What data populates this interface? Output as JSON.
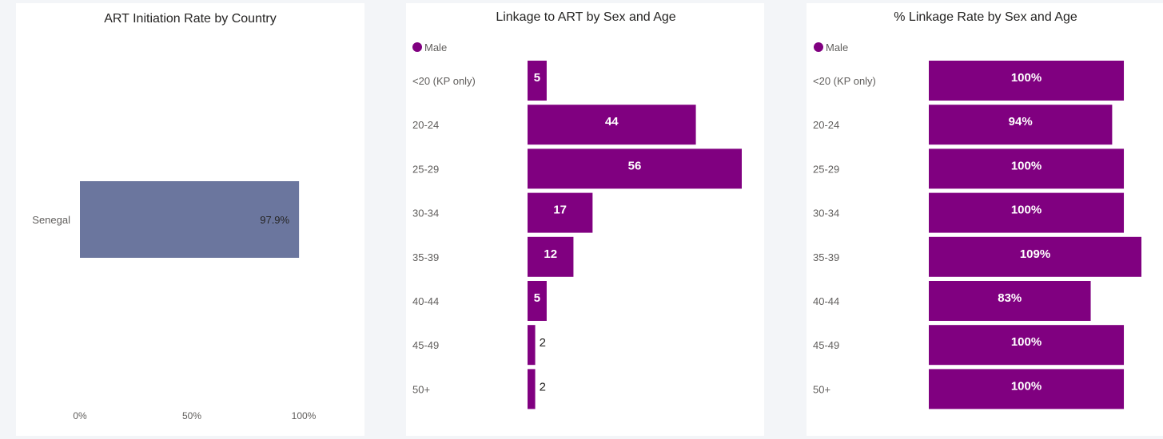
{
  "chart_data": [
    {
      "type": "bar",
      "orientation": "horizontal",
      "title": "ART Initiation Rate by Country",
      "categories": [
        "Senegal"
      ],
      "values": [
        97.9
      ],
      "data_labels": [
        "97.9%"
      ],
      "xlim": [
        0,
        100
      ],
      "xticks": [
        "0%",
        "50%",
        "100%"
      ],
      "color": "#6b769e",
      "grid": false
    },
    {
      "type": "bar",
      "orientation": "horizontal",
      "title": "Linkage to ART by Sex and Age",
      "legend": {
        "position": "top-left",
        "entries": [
          "Male"
        ]
      },
      "categories": [
        "<20 (KP only)",
        "20-24",
        "25-29",
        "30-34",
        "35-39",
        "40-44",
        "45-49",
        "50+"
      ],
      "series": [
        {
          "name": "Male",
          "values": [
            5,
            44,
            56,
            17,
            12,
            5,
            2,
            2
          ]
        }
      ],
      "xlim": [
        0,
        56
      ],
      "color": "#800080",
      "grid": false
    },
    {
      "type": "bar",
      "orientation": "horizontal",
      "title": "% Linkage Rate by Sex and Age",
      "legend": {
        "position": "top-left",
        "entries": [
          "Male"
        ]
      },
      "categories": [
        "<20 (KP only)",
        "20-24",
        "25-29",
        "30-34",
        "35-39",
        "40-44",
        "45-49",
        "50+"
      ],
      "series": [
        {
          "name": "Male",
          "values": [
            100,
            94,
            100,
            100,
            109,
            83,
            100,
            100
          ]
        }
      ],
      "data_labels": [
        "100%",
        "94%",
        "100%",
        "100%",
        "109%",
        "83%",
        "100%",
        "100%"
      ],
      "xlim": [
        0,
        109
      ],
      "color": "#800080",
      "grid": false
    }
  ]
}
